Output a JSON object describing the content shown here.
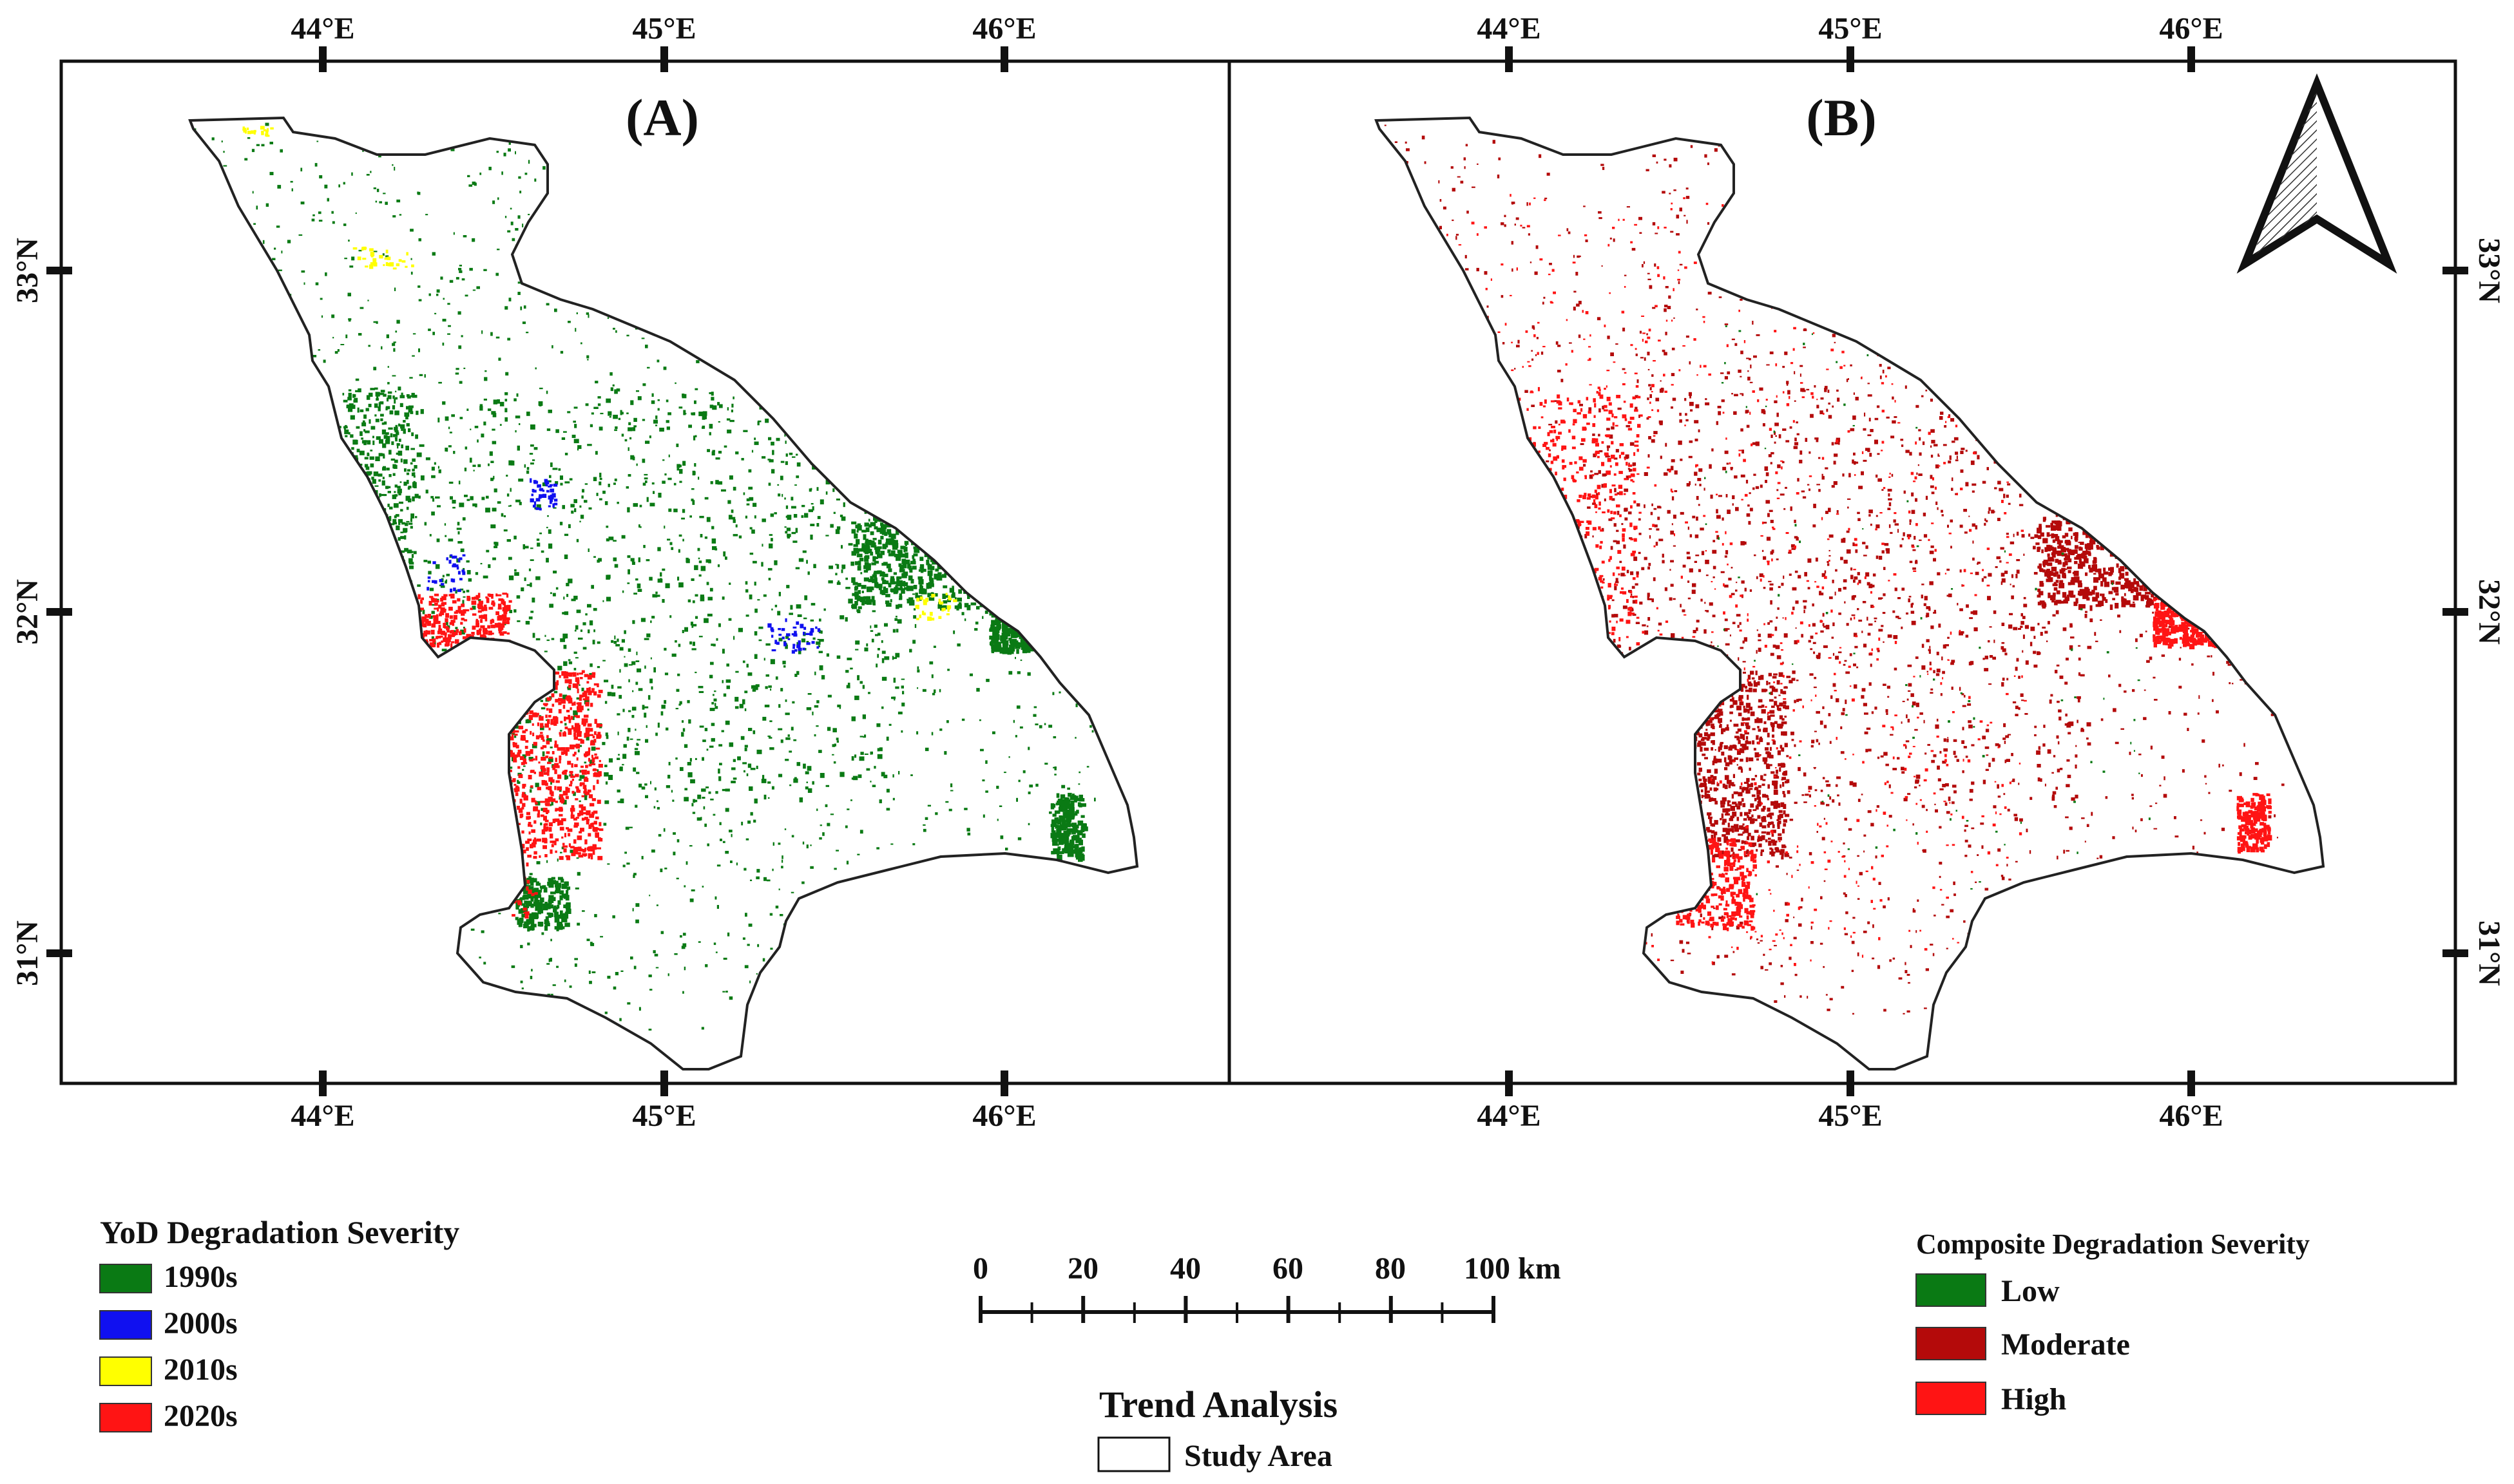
{
  "panels": [
    {
      "label": "(A)",
      "top_lon_ticks": [
        "44°E",
        "45°E",
        "46°E"
      ],
      "bottom_lon_ticks": [
        "44°E",
        "45°E",
        "46°E"
      ],
      "lat_ticks": [
        "33°N",
        "32°N",
        "31°N"
      ],
      "lat_axis_side": "left",
      "mapped_layer": "YoD Degradation Severity"
    },
    {
      "label": "(B)",
      "top_lon_ticks": [
        "44°E",
        "45°E",
        "46°E"
      ],
      "bottom_lon_ticks": [
        "44°E",
        "45°E",
        "46°E"
      ],
      "lat_ticks": [
        "33°N",
        "32°N",
        "31°N"
      ],
      "lat_axis_side": "right",
      "mapped_layer": "Composite Degradation Severity",
      "north_arrow": true
    }
  ],
  "legend_yod": {
    "title": "YoD Degradation Severity",
    "items": [
      {
        "label": "1990s",
        "color": "#0a7a14"
      },
      {
        "label": "2000s",
        "color": "#1010f0"
      },
      {
        "label": "2010s",
        "color": "#ffff00"
      },
      {
        "label": "2020s",
        "color": "#ff1414"
      }
    ]
  },
  "legend_composite": {
    "title": "Composite Degradation Severity",
    "items": [
      {
        "label": "Low",
        "color": "#0a7a14"
      },
      {
        "label": "Moderate",
        "color": "#b40a0a"
      },
      {
        "label": "High",
        "color": "#ff1414"
      }
    ]
  },
  "scale_bar": {
    "labels": [
      "0",
      "20",
      "40",
      "60",
      "80",
      "100 km"
    ]
  },
  "trend_legend": {
    "title": "Trend Analysis",
    "item": "Study Area"
  }
}
